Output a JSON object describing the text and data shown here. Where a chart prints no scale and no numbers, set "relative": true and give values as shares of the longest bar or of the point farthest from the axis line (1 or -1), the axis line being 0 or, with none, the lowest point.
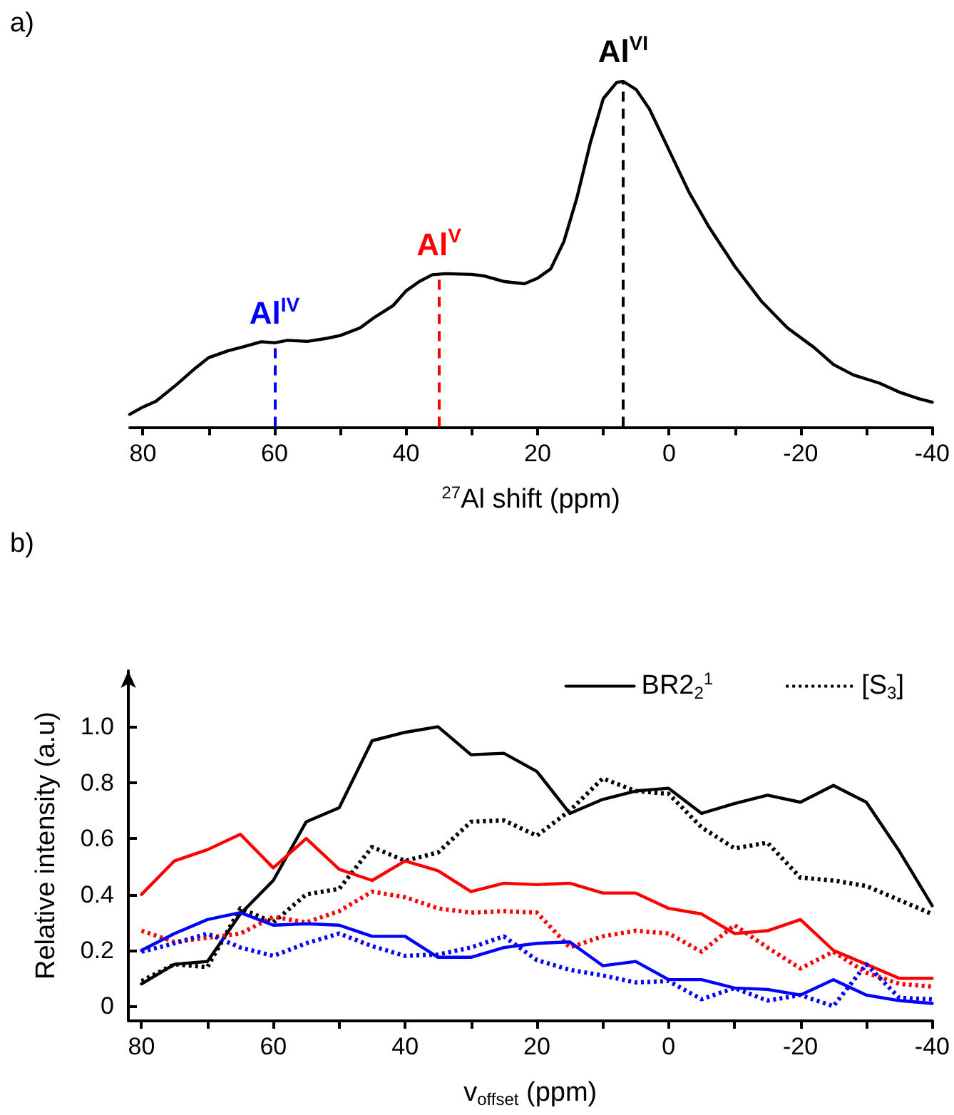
{
  "chart_data": [
    {
      "type": "line",
      "title": "a)",
      "xlabel": "$^{27}$Al shift (ppm)",
      "relative": true,
      "xlim": [
        82,
        -40
      ],
      "xticks": [
        80,
        {
          "value": 70,
          "label": null
        },
        60,
        {
          "value": 50,
          "label": null
        },
        40,
        {
          "value": 30,
          "label": null
        },
        20,
        {
          "value": 10,
          "label": null
        },
        0,
        {
          "value": -10,
          "label": null
        },
        -20,
        {
          "value": -30,
          "label": null
        },
        -40
      ],
      "grid": false,
      "marker": "none",
      "line_style": "solid",
      "tick_labels": "x",
      "series": [
        {
          "color": "#000000",
          "x": [
            82,
            80,
            78,
            75,
            72,
            70,
            67,
            65,
            62,
            60,
            58,
            55,
            52,
            50,
            47,
            45,
            42,
            40,
            38,
            36,
            34,
            30,
            28,
            25,
            22,
            20,
            18,
            16,
            14,
            12,
            10,
            8,
            7,
            5,
            3,
            0,
            -3,
            -6,
            -10,
            -14,
            -18,
            -22,
            -25,
            -28,
            -32,
            -35,
            -38,
            -40
          ],
          "values": [
            0.036,
            0.057,
            0.074,
            0.12,
            0.17,
            0.2,
            0.22,
            0.23,
            0.246,
            0.243,
            0.25,
            0.247,
            0.256,
            0.264,
            0.286,
            0.314,
            0.35,
            0.393,
            0.42,
            0.44,
            0.443,
            0.441,
            0.436,
            0.42,
            0.414,
            0.43,
            0.457,
            0.536,
            0.664,
            0.82,
            0.95,
            0.996,
            1.0,
            0.976,
            0.92,
            0.8,
            0.68,
            0.58,
            0.464,
            0.364,
            0.286,
            0.23,
            0.18,
            0.15,
            0.126,
            0.1,
            0.081,
            0.071
          ]
        }
      ],
      "ref_lines": [
        {
          "axis": "x",
          "value": 60,
          "label": "Al$^{IV}$",
          "color": "#0000ff",
          "line_style": "dashed"
        },
        {
          "axis": "x",
          "value": 35,
          "label": "Al$^{V}$",
          "color": "#ff0000",
          "line_style": "dashed"
        },
        {
          "axis": "x",
          "value": 7,
          "label": "Al$^{VI}$",
          "color": "#000000",
          "line_style": "dashed"
        }
      ]
    },
    {
      "type": "line",
      "title": "b)",
      "xlabel": "v$_{offset}$ (ppm)",
      "ylabel": "Relative intensity (a.u)",
      "xlim": [
        82,
        -40
      ],
      "xticks": [
        80,
        {
          "value": 70,
          "label": null
        },
        60,
        {
          "value": 50,
          "label": null
        },
        40,
        {
          "value": 30,
          "label": null
        },
        20,
        {
          "value": 10,
          "label": null
        },
        0,
        {
          "value": -10,
          "label": null
        },
        -20,
        {
          "value": -30,
          "label": null
        },
        -40
      ],
      "ylim": [
        -0.05,
        1.2
      ],
      "yticks": [
        0,
        0.2,
        0.4,
        0.6,
        0.8,
        {
          "value": 1,
          "label": "1.0"
        }
      ],
      "grid": false,
      "marker": "none",
      "legend": "top right",
      "x": [
        80,
        75,
        70,
        65,
        60,
        55,
        50,
        45,
        40,
        35,
        30,
        25,
        20,
        15,
        10,
        5,
        0,
        -5,
        -10,
        -15,
        -20,
        -25,
        -30,
        -35,
        -40
      ],
      "series": [
        {
          "name": "BR2$_{2}$$^{1}$",
          "color": "#000000",
          "line_style": "solid",
          "values": [
            0.08,
            0.15,
            0.16,
            0.33,
            0.45,
            0.66,
            0.71,
            0.95,
            0.98,
            1.0,
            0.9,
            0.905,
            0.84,
            0.69,
            0.74,
            0.77,
            0.78,
            0.69,
            0.725,
            0.755,
            0.73,
            0.79,
            0.73,
            0.555,
            0.36
          ]
        },
        {
          "name": "[S$_{3}$]",
          "color": "#000000",
          "line_style": "dotted",
          "values": [
            0.09,
            0.15,
            0.14,
            0.35,
            0.3,
            0.4,
            0.42,
            0.57,
            0.52,
            0.55,
            0.66,
            0.665,
            0.61,
            0.7,
            0.815,
            0.77,
            0.76,
            0.64,
            0.565,
            0.585,
            0.46,
            0.45,
            0.43,
            0.38,
            0.33
          ]
        },
        {
          "color": "#ff0000",
          "line_style": "solid",
          "values": [
            0.4,
            0.52,
            0.56,
            0.615,
            0.495,
            0.6,
            0.49,
            0.45,
            0.52,
            0.485,
            0.41,
            0.44,
            0.435,
            0.44,
            0.405,
            0.405,
            0.35,
            0.33,
            0.26,
            0.27,
            0.31,
            0.2,
            0.15,
            0.1,
            0.1
          ]
        },
        {
          "color": "#ff0000",
          "line_style": "dotted",
          "values": [
            0.27,
            0.23,
            0.245,
            0.26,
            0.32,
            0.3,
            0.34,
            0.41,
            0.39,
            0.35,
            0.335,
            0.34,
            0.335,
            0.21,
            0.25,
            0.27,
            0.26,
            0.195,
            0.29,
            0.21,
            0.135,
            0.195,
            0.12,
            0.08,
            0.07
          ]
        },
        {
          "color": "#0000ff",
          "line_style": "solid",
          "values": [
            0.2,
            0.26,
            0.31,
            0.335,
            0.29,
            0.295,
            0.29,
            0.25,
            0.25,
            0.175,
            0.175,
            0.21,
            0.225,
            0.23,
            0.145,
            0.16,
            0.095,
            0.095,
            0.065,
            0.06,
            0.04,
            0.095,
            0.04,
            0.02,
            0.01
          ]
        },
        {
          "color": "#0000ff",
          "line_style": "dotted",
          "values": [
            0.195,
            0.225,
            0.26,
            0.21,
            0.18,
            0.225,
            0.26,
            0.215,
            0.18,
            0.185,
            0.21,
            0.25,
            0.165,
            0.13,
            0.11,
            0.085,
            0.09,
            0.025,
            0.065,
            0.02,
            0.04,
            0.0,
            0.15,
            0.03,
            0.025
          ]
        }
      ]
    }
  ]
}
